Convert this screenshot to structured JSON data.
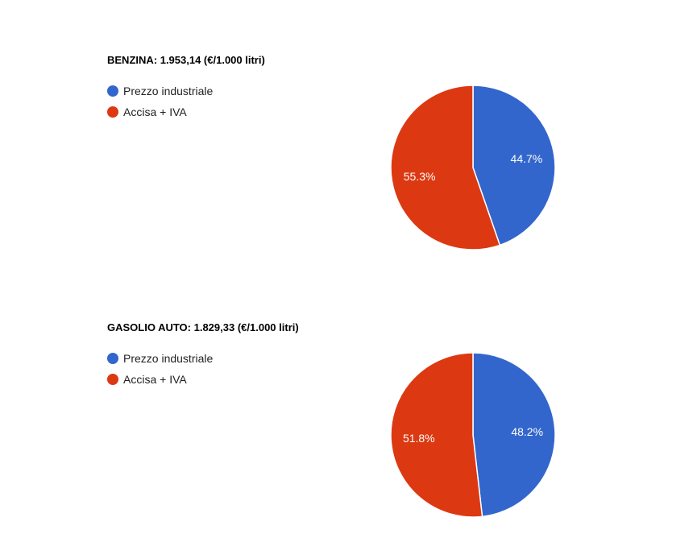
{
  "chart_data": [
    {
      "type": "pie",
      "title": "BENZINA: 1.953,14 (€/1.000 litri)",
      "categories": [
        "Prezzo industriale",
        "Accisa + IVA"
      ],
      "values": [
        44.7,
        55.3
      ],
      "value_labels": [
        "44.7%",
        "55.3%"
      ],
      "colors": [
        "#3366cc",
        "#dc3912"
      ],
      "legend_position": "top-left"
    },
    {
      "type": "pie",
      "title": "GASOLIO AUTO: 1.829,33 (€/1.000 litri)",
      "categories": [
        "Prezzo industriale",
        "Accisa + IVA"
      ],
      "values": [
        48.2,
        51.8
      ],
      "value_labels": [
        "48.2%",
        "51.8%"
      ],
      "colors": [
        "#3366cc",
        "#dc3912"
      ],
      "legend_position": "top-left"
    }
  ]
}
